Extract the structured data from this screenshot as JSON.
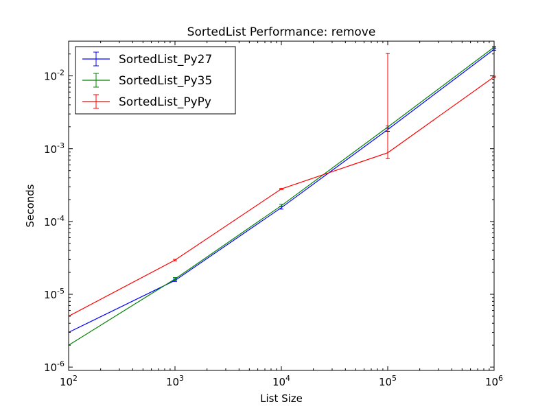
{
  "chart_data": {
    "type": "line",
    "title": "SortedList Performance: remove",
    "xlabel": "List Size",
    "ylabel": "Seconds",
    "xscale": "log",
    "yscale": "log",
    "xlim": [
      100,
      1000000
    ],
    "ylim": [
      9e-07,
      0.03
    ],
    "x_ticks": [
      {
        "value": 100,
        "base": "10",
        "exp": "2"
      },
      {
        "value": 1000,
        "base": "10",
        "exp": "3"
      },
      {
        "value": 10000,
        "base": "10",
        "exp": "4"
      },
      {
        "value": 100000,
        "base": "10",
        "exp": "5"
      },
      {
        "value": 1000000,
        "base": "10",
        "exp": "6"
      }
    ],
    "y_ticks": [
      {
        "value": 1e-06,
        "base": "10",
        "exp": "-6"
      },
      {
        "value": 1e-05,
        "base": "10",
        "exp": "-5"
      },
      {
        "value": 0.0001,
        "base": "10",
        "exp": "-4"
      },
      {
        "value": 0.001,
        "base": "10",
        "exp": "-3"
      },
      {
        "value": 0.01,
        "base": "10",
        "exp": "-2"
      }
    ],
    "grid": false,
    "legend_position": "top-left",
    "x": [
      100,
      1000,
      10000,
      100000,
      1000000
    ],
    "series": [
      {
        "name": "SortedList_Py27",
        "color": "#0000ff",
        "values": [
          3e-06,
          1.55e-05,
          0.000155,
          0.00183,
          0.0232
        ],
        "err_low": [
          3e-06,
          1.5e-05,
          0.000148,
          0.00173,
          0.0225
        ],
        "err_high": [
          3e-06,
          1.62e-05,
          0.000162,
          0.00193,
          0.024
        ]
      },
      {
        "name": "SortedList_Py35",
        "color": "#008000",
        "values": [
          2e-06,
          1.62e-05,
          0.000165,
          0.00198,
          0.0248
        ],
        "err_low": [
          2e-06,
          1.55e-05,
          0.00016,
          0.0019,
          0.0243
        ],
        "err_high": [
          2e-06,
          1.7e-05,
          0.000172,
          0.00205,
          0.0255
        ]
      },
      {
        "name": "SortedList_PyPy",
        "color": "#ff0000",
        "values": [
          5e-06,
          2.95e-05,
          0.00028,
          0.00088,
          0.0097
        ],
        "err_low": [
          5e-06,
          2.88e-05,
          0.000275,
          0.00073,
          0.0095
        ],
        "err_high": [
          5e-06,
          3.02e-05,
          0.000285,
          0.0205,
          0.0099
        ]
      }
    ]
  }
}
